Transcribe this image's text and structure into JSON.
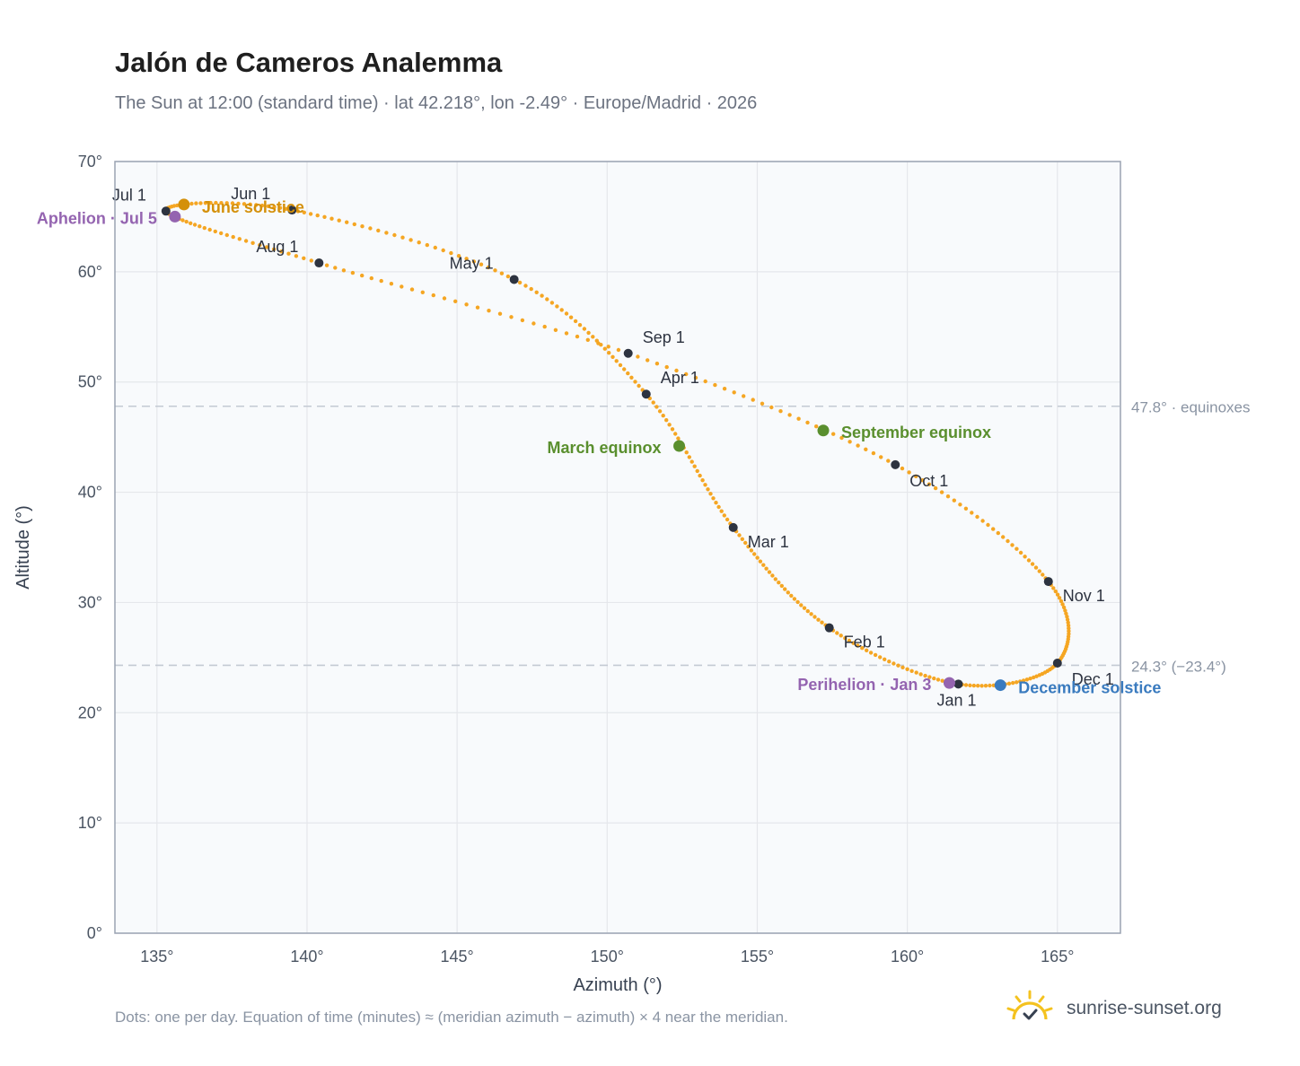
{
  "title": "Jalón de Cameros Analemma",
  "subtitle": "The Sun at 12:00 (standard time) · lat 42.218°, lon -2.49° · Europe/Madrid · 2026",
  "footnote": "Dots: one per day. Equation of time (minutes) ≈ (meridian azimuth − azimuth) × 4 near the meridian.",
  "brand": {
    "name": "sunrise-sunset.org",
    "logo_icon": "sun-check-icon"
  },
  "colors": {
    "path": "#f5a623",
    "month_marker": "#2d3340",
    "june_solstice": "#d4900a",
    "december_solstice": "#3a7bbf",
    "equinox": "#5a8f2e",
    "apsis": "#9464b0",
    "plot_bg": "#f8fafc",
    "grid": "#e5e7eb",
    "reference_line": "#c4cad3"
  },
  "chart_data": {
    "type": "scatter",
    "xlabel": "Azimuth (°)",
    "ylabel": "Altitude (°)",
    "xlim": [
      133.6,
      167.1
    ],
    "ylim": [
      0,
      70
    ],
    "xticks": [
      "135°",
      "140°",
      "145°",
      "150°",
      "155°",
      "160°",
      "165°"
    ],
    "yticks": [
      "0°",
      "10°",
      "20°",
      "30°",
      "40°",
      "50°",
      "60°",
      "70°"
    ],
    "grid": true,
    "path_note": "one dot per day",
    "month_markers": [
      {
        "label": "Jan 1",
        "az": 161.7,
        "alt": 22.6
      },
      {
        "label": "Feb 1",
        "az": 157.4,
        "alt": 27.7
      },
      {
        "label": "Mar 1",
        "az": 154.2,
        "alt": 36.8
      },
      {
        "label": "Apr 1",
        "az": 151.3,
        "alt": 48.9
      },
      {
        "label": "May 1",
        "az": 146.9,
        "alt": 59.3
      },
      {
        "label": "Jun 1",
        "az": 139.5,
        "alt": 65.6
      },
      {
        "label": "Jul 1",
        "az": 135.3,
        "alt": 65.5
      },
      {
        "label": "Aug 1",
        "az": 140.4,
        "alt": 60.8
      },
      {
        "label": "Sep 1",
        "az": 150.7,
        "alt": 52.6
      },
      {
        "label": "Oct 1",
        "az": 159.6,
        "alt": 42.5
      },
      {
        "label": "Nov 1",
        "az": 164.7,
        "alt": 31.9
      },
      {
        "label": "Dec 1",
        "az": 165.0,
        "alt": 24.5
      }
    ],
    "events": [
      {
        "label": "June solstice",
        "az": 135.9,
        "alt": 66.1,
        "kind": "june_solstice"
      },
      {
        "label": "December solstice",
        "az": 163.1,
        "alt": 22.5,
        "kind": "december_solstice"
      },
      {
        "label": "March equinox",
        "az": 152.4,
        "alt": 44.2,
        "kind": "equinox"
      },
      {
        "label": "September equinox",
        "az": 157.2,
        "alt": 45.6,
        "kind": "equinox"
      },
      {
        "label": "Aphelion · Jul 5",
        "az": 135.6,
        "alt": 65.0,
        "kind": "apsis"
      },
      {
        "label": "Perihelion · Jan 3",
        "az": 161.4,
        "alt": 22.7,
        "kind": "apsis"
      }
    ],
    "reference_lines": [
      {
        "alt": 47.8,
        "label": "47.8° · equinoxes"
      },
      {
        "alt": 24.3,
        "label": "24.3° (−23.4°)"
      }
    ]
  }
}
